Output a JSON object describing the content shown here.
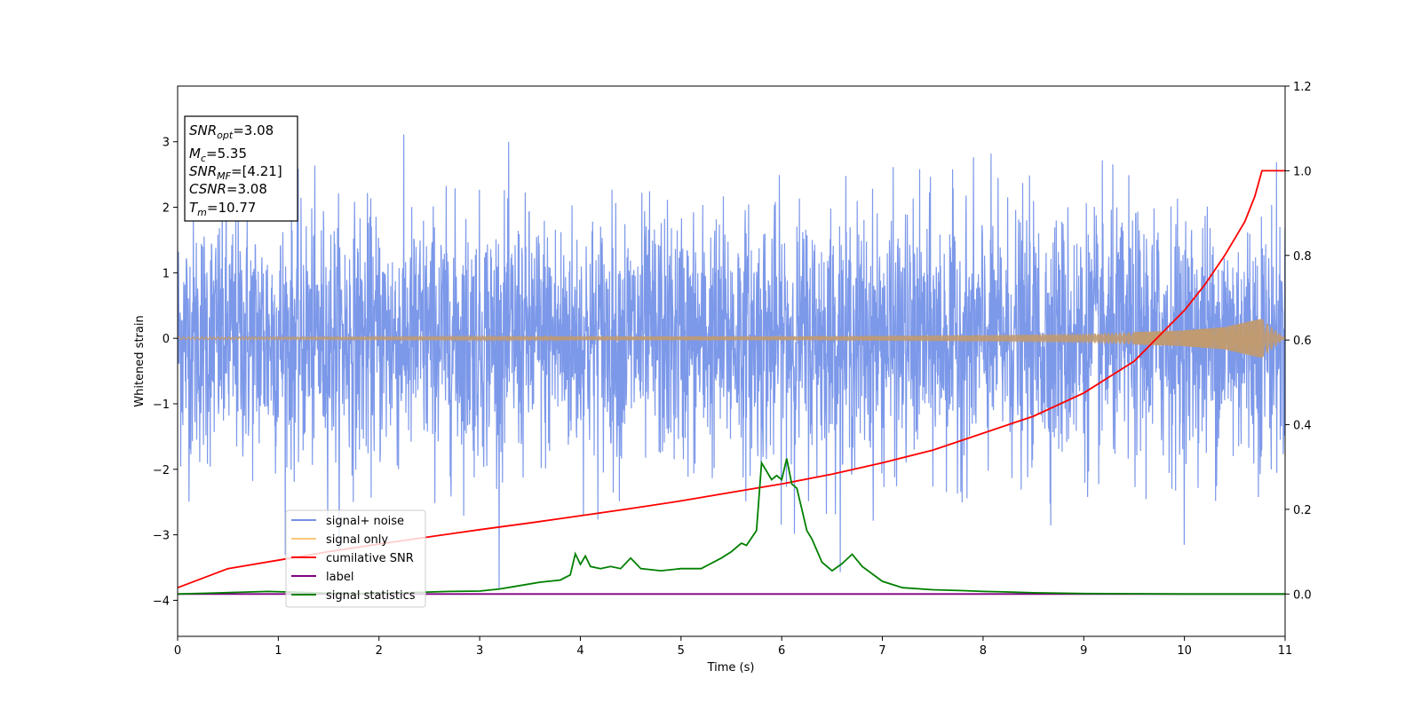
{
  "chart_data": {
    "type": "line",
    "title": "",
    "xlabel": "Time (s)",
    "ylabel": "Whitened strain",
    "y2label": "",
    "xlim": [
      0,
      11
    ],
    "ylim": [
      -4.55,
      3.85
    ],
    "y2lim": [
      -0.1,
      1.2
    ],
    "x_ticks": [
      0,
      1,
      2,
      3,
      4,
      5,
      6,
      7,
      8,
      9,
      10,
      11
    ],
    "y_ticks": [
      -4,
      -3,
      -2,
      -1,
      0,
      1,
      2,
      3
    ],
    "y2_ticks": [
      0.0,
      0.2,
      0.4,
      0.6,
      0.8,
      1.0,
      1.2
    ],
    "grid": false,
    "legend_position": "lower-left",
    "info_box": {
      "snr_opt": "=3.08",
      "mc": "=5.35",
      "snr_mf": "=[4.21]",
      "csnr_label": "CSNR",
      "csnr": "=3.08",
      "tm": "=10.77"
    },
    "series": [
      {
        "name": "signal+ noise",
        "axis": "left",
        "color": "#7592e8",
        "description": "whitened noise, approx. Gaussian, spans -4.2 to 3.5",
        "noise_sigma": 0.95,
        "x_range": [
          0,
          11
        ]
      },
      {
        "name": "signal only",
        "axis": "left",
        "color": "#fdca77",
        "description": "chirp signal, amplitude grows toward merger",
        "envelope": {
          "x": [
            0,
            6,
            8,
            9,
            10,
            10.4,
            10.77,
            11
          ],
          "amp": [
            0.02,
            0.03,
            0.05,
            0.07,
            0.12,
            0.17,
            0.3,
            0.0
          ]
        }
      },
      {
        "name": "cumilative SNR",
        "axis": "right",
        "color": "#ff0000",
        "x": [
          0,
          0.5,
          1,
          1.5,
          2,
          2.5,
          3,
          3.5,
          4,
          4.5,
          5,
          5.5,
          6,
          6.5,
          7,
          7.5,
          8,
          8.5,
          9,
          9.5,
          10,
          10.2,
          10.4,
          10.6,
          10.7,
          10.77,
          11
        ],
        "y": [
          0.015,
          0.06,
          0.08,
          0.1,
          0.118,
          0.135,
          0.152,
          0.168,
          0.185,
          0.202,
          0.22,
          0.24,
          0.26,
          0.283,
          0.31,
          0.34,
          0.38,
          0.42,
          0.475,
          0.55,
          0.67,
          0.73,
          0.8,
          0.88,
          0.94,
          1.0,
          1.0
        ]
      },
      {
        "name": "label",
        "axis": "right",
        "color": "#800080",
        "x": [
          0,
          11
        ],
        "y": [
          0.0,
          0.0
        ]
      },
      {
        "name": "signal statistics",
        "axis": "right",
        "color": "#008000",
        "x": [
          0,
          0.3,
          0.6,
          0.9,
          1.2,
          1.5,
          1.8,
          2.1,
          2.4,
          2.7,
          3.0,
          3.2,
          3.4,
          3.6,
          3.8,
          3.9,
          3.95,
          4.0,
          4.05,
          4.1,
          4.2,
          4.3,
          4.4,
          4.5,
          4.6,
          4.8,
          5.0,
          5.2,
          5.4,
          5.5,
          5.6,
          5.65,
          5.75,
          5.8,
          5.85,
          5.9,
          5.95,
          6.0,
          6.05,
          6.1,
          6.15,
          6.2,
          6.25,
          6.3,
          6.4,
          6.5,
          6.6,
          6.7,
          6.8,
          7.0,
          7.2,
          7.5,
          7.8,
          8.0,
          8.2,
          8.5,
          9.0,
          10.0,
          11.0
        ],
        "y": [
          0.0,
          0.002,
          0.004,
          0.006,
          0.004,
          0.002,
          0.001,
          0.002,
          0.004,
          0.006,
          0.007,
          0.012,
          0.02,
          0.028,
          0.033,
          0.045,
          0.095,
          0.07,
          0.09,
          0.065,
          0.06,
          0.065,
          0.06,
          0.085,
          0.06,
          0.055,
          0.06,
          0.06,
          0.085,
          0.1,
          0.12,
          0.115,
          0.15,
          0.31,
          0.29,
          0.27,
          0.28,
          0.27,
          0.32,
          0.26,
          0.25,
          0.2,
          0.15,
          0.13,
          0.075,
          0.055,
          0.072,
          0.094,
          0.065,
          0.03,
          0.015,
          0.01,
          0.008,
          0.006,
          0.005,
          0.003,
          0.001,
          0.0,
          0.0
        ]
      }
    ]
  }
}
